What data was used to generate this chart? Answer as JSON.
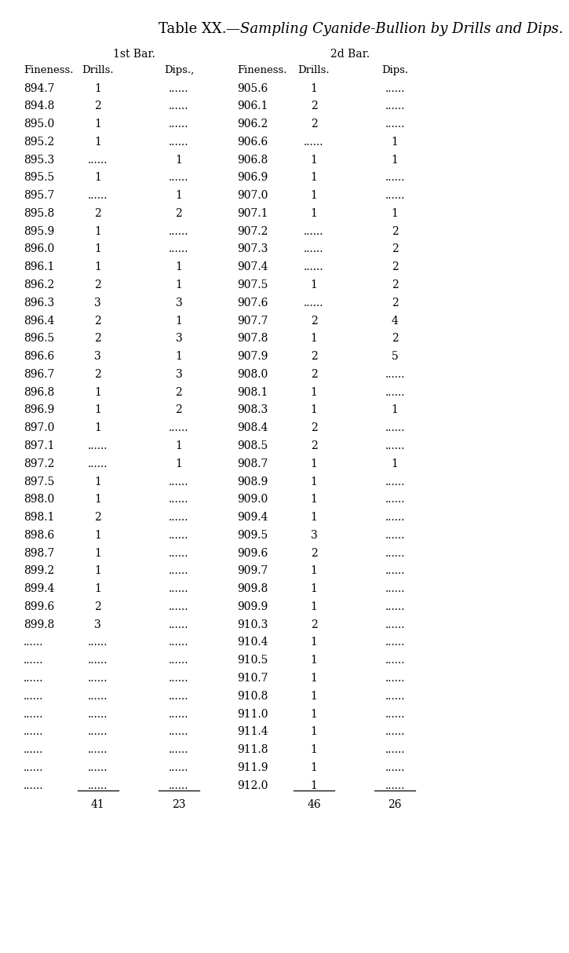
{
  "title_roman": "Table XX.",
  "title_italic": "—Sampling Cyanide-Bullion by Drills and Dips.",
  "col1_header1": "1st Bar.",
  "col2_header1": "2d Bar.",
  "subheaders_left": [
    "Fineness.",
    "Drills.",
    "Dips.,"
  ],
  "subheaders_right": [
    "Fineness.",
    "Drills.",
    "Dips."
  ],
  "left_data": [
    [
      "894.7",
      "1",
      "......"
    ],
    [
      "894.8",
      "2",
      "......"
    ],
    [
      "895.0",
      "1",
      "......"
    ],
    [
      "895.2",
      "1",
      "......"
    ],
    [
      "895.3",
      "......",
      "1"
    ],
    [
      "895.5",
      "1",
      "......"
    ],
    [
      "895.7",
      "......",
      "1"
    ],
    [
      "895.8",
      "2",
      "2"
    ],
    [
      "895.9",
      "1",
      "......"
    ],
    [
      "896.0",
      "1",
      "......"
    ],
    [
      "896.1",
      "1",
      "1"
    ],
    [
      "896.2",
      "2",
      "1"
    ],
    [
      "896.3",
      "3",
      "3"
    ],
    [
      "896.4",
      "2",
      "1"
    ],
    [
      "896.5",
      "2",
      "3"
    ],
    [
      "896.6",
      "3",
      "1"
    ],
    [
      "896.7",
      "2",
      "3"
    ],
    [
      "896.8",
      "1",
      "2"
    ],
    [
      "896.9",
      "1",
      "2"
    ],
    [
      "897.0",
      "1",
      "......"
    ],
    [
      "897.1",
      "......",
      "1"
    ],
    [
      "897.2",
      "......",
      "1"
    ],
    [
      "897.5",
      "1",
      "......"
    ],
    [
      "898.0",
      "1",
      "......"
    ],
    [
      "898.1",
      "2",
      "......"
    ],
    [
      "898.6",
      "1",
      "......"
    ],
    [
      "898.7",
      "1",
      "......"
    ],
    [
      "899.2",
      "1",
      "......"
    ],
    [
      "899.4",
      "1",
      "......"
    ],
    [
      "899.6",
      "2",
      "......"
    ],
    [
      "899.8",
      "3",
      "......"
    ],
    [
      "......",
      "......",
      "......"
    ],
    [
      "......",
      "......",
      "......"
    ],
    [
      "......",
      "......",
      "......"
    ],
    [
      "......",
      "......",
      "......"
    ],
    [
      "......",
      "......",
      "......"
    ],
    [
      "......",
      "......",
      "......"
    ],
    [
      "......",
      "......",
      "......"
    ],
    [
      "......",
      "......",
      "......"
    ],
    [
      "......",
      "......",
      "......"
    ]
  ],
  "left_totals": [
    "41",
    "23"
  ],
  "right_data": [
    [
      "905.6",
      "1",
      "......"
    ],
    [
      "906.1",
      "2",
      "......"
    ],
    [
      "906.2",
      "2",
      "......"
    ],
    [
      "906.6",
      "......",
      "1"
    ],
    [
      "906.8",
      "1",
      "1"
    ],
    [
      "906.9",
      "1",
      "......"
    ],
    [
      "907.0",
      "1",
      "......"
    ],
    [
      "907.1",
      "1",
      "1"
    ],
    [
      "907.2",
      "......",
      "2"
    ],
    [
      "907.3",
      "......",
      "2"
    ],
    [
      "907.4",
      "......",
      "2"
    ],
    [
      "907.5",
      "1",
      "2"
    ],
    [
      "907.6",
      "......",
      "2"
    ],
    [
      "907.7",
      "2",
      "4"
    ],
    [
      "907.8",
      "1",
      "2"
    ],
    [
      "907.9",
      "2",
      "5"
    ],
    [
      "908.0",
      "2",
      "......"
    ],
    [
      "908.1",
      "1",
      "......"
    ],
    [
      "908.3",
      "1",
      "1"
    ],
    [
      "908.4",
      "2",
      "......"
    ],
    [
      "908.5",
      "2",
      "......"
    ],
    [
      "908.7",
      "1",
      "1"
    ],
    [
      "908.9",
      "1",
      "......"
    ],
    [
      "909.0",
      "1",
      "......"
    ],
    [
      "909.4",
      "1",
      "......"
    ],
    [
      "909.5",
      "3",
      "......"
    ],
    [
      "909.6",
      "2",
      "......"
    ],
    [
      "909.7",
      "1",
      "......"
    ],
    [
      "909.8",
      "1",
      "......"
    ],
    [
      "909.9",
      "1",
      "......"
    ],
    [
      "910.3",
      "2",
      "......"
    ],
    [
      "910.4",
      "1",
      "......"
    ],
    [
      "910.5",
      "1",
      "......"
    ],
    [
      "910.7",
      "1",
      "......"
    ],
    [
      "910.8",
      "1",
      "......"
    ],
    [
      "911.0",
      "1",
      "......"
    ],
    [
      "911.4",
      "1",
      "......"
    ],
    [
      "911.8",
      "1",
      "......"
    ],
    [
      "911.9",
      "1",
      "......"
    ],
    [
      "912.0",
      "1",
      "......"
    ]
  ],
  "right_totals": [
    "46",
    "26"
  ],
  "bg_color": "#ffffff",
  "text_color": "#000000"
}
